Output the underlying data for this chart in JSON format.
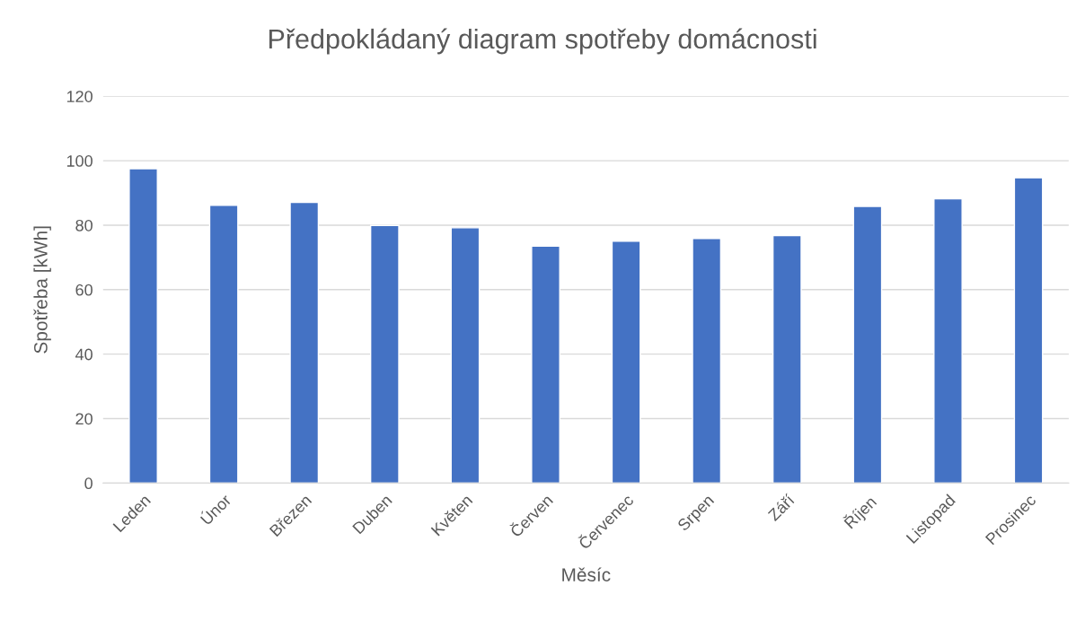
{
  "chart_data": {
    "type": "bar",
    "title": "Předpokládaný diagram spotřeby domácnosti",
    "xlabel": "Měsíc",
    "ylabel": "Spotřeba [kWh]",
    "categories": [
      "Leden",
      "Únor",
      "Březen",
      "Duben",
      "Květen",
      "Červen",
      "Červenec",
      "Srpen",
      "Září",
      "Říjen",
      "Listopad",
      "Prosinec"
    ],
    "values": [
      97.5,
      86.2,
      87.1,
      79.9,
      79.2,
      73.5,
      75.0,
      75.9,
      76.8,
      85.8,
      88.2,
      94.7
    ],
    "color": "#4472c4",
    "ylim": [
      0,
      120
    ],
    "yticks": [
      0,
      20,
      40,
      60,
      80,
      100,
      120
    ],
    "grid": "y"
  }
}
